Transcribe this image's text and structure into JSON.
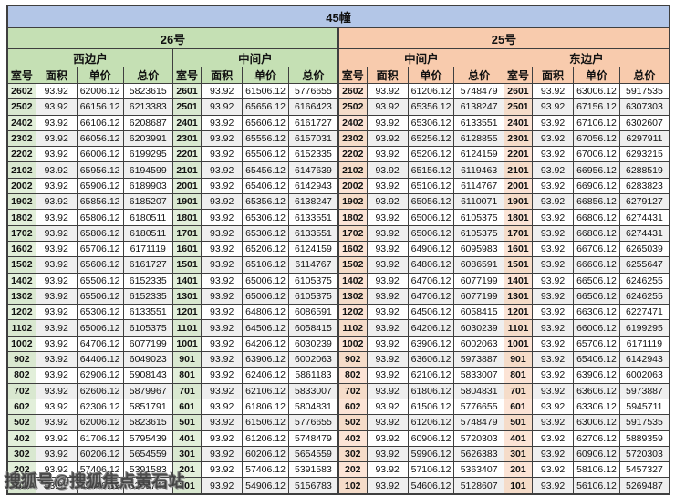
{
  "banner": {
    "title": "45幢"
  },
  "watermark": {
    "text": "搜狐号@搜狐焦点黄石站"
  },
  "colors": {
    "banner_bg": "#b3c6e7",
    "green_header": "#c5e0b4",
    "green_room": "#e2efda",
    "orange_header": "#f8cbad",
    "orange_room": "#fce4d6",
    "stripe": "#efefef",
    "border": "#3f3f3f"
  },
  "table": {
    "column_headers": [
      "室号",
      "面积",
      "单价",
      "总价"
    ],
    "groups": [
      {
        "label": "26号",
        "units": [
          "西边户",
          "中间户"
        ]
      },
      {
        "label": "25号",
        "units": [
          "中间户",
          "东边户"
        ]
      }
    ],
    "sections": [
      {
        "group": "26号",
        "unit": "西边户",
        "rows": [
          [
            "2602",
            "93.92",
            "62006.12",
            "5823615"
          ],
          [
            "2502",
            "93.92",
            "66156.12",
            "6213383"
          ],
          [
            "2402",
            "93.92",
            "66106.12",
            "6208687"
          ],
          [
            "2302",
            "93.92",
            "66056.12",
            "6203991"
          ],
          [
            "2202",
            "93.92",
            "66006.12",
            "6199295"
          ],
          [
            "2102",
            "93.92",
            "65956.12",
            "6194599"
          ],
          [
            "2002",
            "93.92",
            "65906.12",
            "6189903"
          ],
          [
            "1902",
            "93.92",
            "65856.12",
            "6185207"
          ],
          [
            "1802",
            "93.92",
            "65806.12",
            "6180511"
          ],
          [
            "1702",
            "93.92",
            "65806.12",
            "6180511"
          ],
          [
            "1602",
            "93.92",
            "65706.12",
            "6171119"
          ],
          [
            "1502",
            "93.92",
            "65606.12",
            "6161727"
          ],
          [
            "1402",
            "93.92",
            "65506.12",
            "6152335"
          ],
          [
            "1302",
            "93.92",
            "65506.12",
            "6152335"
          ],
          [
            "1202",
            "93.92",
            "65306.12",
            "6133551"
          ],
          [
            "1102",
            "93.92",
            "65006.12",
            "6105375"
          ],
          [
            "1002",
            "93.92",
            "64706.12",
            "6077199"
          ],
          [
            "902",
            "93.92",
            "64406.12",
            "6049023"
          ],
          [
            "802",
            "93.92",
            "62906.12",
            "5908143"
          ],
          [
            "702",
            "93.92",
            "62606.12",
            "5879967"
          ],
          [
            "602",
            "93.92",
            "62306.12",
            "5851791"
          ],
          [
            "502",
            "93.92",
            "62006.12",
            "5823615"
          ],
          [
            "402",
            "93.92",
            "61706.12",
            "5795439"
          ],
          [
            "302",
            "93.92",
            "60206.12",
            "5654559"
          ],
          [
            "202",
            "93.92",
            "57406.12",
            "5391583"
          ],
          [
            "102",
            "93.92",
            "55406.12",
            "5203743"
          ]
        ]
      },
      {
        "group": "26号",
        "unit": "中间户",
        "rows": [
          [
            "2601",
            "93.92",
            "61506.12",
            "5776655"
          ],
          [
            "2501",
            "93.92",
            "65656.12",
            "6166423"
          ],
          [
            "2401",
            "93.92",
            "65606.12",
            "6161727"
          ],
          [
            "2301",
            "93.92",
            "65556.12",
            "6157031"
          ],
          [
            "2201",
            "93.92",
            "65506.12",
            "6152335"
          ],
          [
            "2101",
            "93.92",
            "65456.12",
            "6147639"
          ],
          [
            "2001",
            "93.92",
            "65406.12",
            "6142943"
          ],
          [
            "1901",
            "93.92",
            "65356.12",
            "6138247"
          ],
          [
            "1801",
            "93.92",
            "65306.12",
            "6133551"
          ],
          [
            "1701",
            "93.92",
            "65306.12",
            "6133551"
          ],
          [
            "1601",
            "93.92",
            "65206.12",
            "6124159"
          ],
          [
            "1501",
            "93.92",
            "65106.12",
            "6114767"
          ],
          [
            "1401",
            "93.92",
            "65006.12",
            "6105375"
          ],
          [
            "1301",
            "93.92",
            "65006.12",
            "6105375"
          ],
          [
            "1201",
            "93.92",
            "64806.12",
            "6086591"
          ],
          [
            "1101",
            "93.92",
            "64506.12",
            "6058415"
          ],
          [
            "1001",
            "93.92",
            "64206.12",
            "6030239"
          ],
          [
            "901",
            "93.92",
            "63906.12",
            "6002063"
          ],
          [
            "801",
            "93.92",
            "62406.12",
            "5861183"
          ],
          [
            "701",
            "93.92",
            "62106.12",
            "5833007"
          ],
          [
            "601",
            "93.92",
            "61806.12",
            "5804831"
          ],
          [
            "501",
            "93.92",
            "61506.12",
            "5776655"
          ],
          [
            "401",
            "93.92",
            "61206.12",
            "5748479"
          ],
          [
            "301",
            "93.92",
            "60206.12",
            "5654559"
          ],
          [
            "201",
            "93.92",
            "57406.12",
            "5391583"
          ],
          [
            "101",
            "93.92",
            "54906.12",
            "5156783"
          ]
        ]
      },
      {
        "group": "25号",
        "unit": "中间户",
        "rows": [
          [
            "2602",
            "93.92",
            "61206.12",
            "5748479"
          ],
          [
            "2502",
            "93.92",
            "65356.12",
            "6138247"
          ],
          [
            "2402",
            "93.92",
            "65306.12",
            "6133551"
          ],
          [
            "2302",
            "93.92",
            "65256.12",
            "6128855"
          ],
          [
            "2202",
            "93.92",
            "65206.12",
            "6124159"
          ],
          [
            "2102",
            "93.92",
            "65156.12",
            "6119463"
          ],
          [
            "2002",
            "93.92",
            "65106.12",
            "6114767"
          ],
          [
            "1902",
            "93.92",
            "65056.12",
            "6110071"
          ],
          [
            "1802",
            "93.92",
            "65006.12",
            "6105375"
          ],
          [
            "1702",
            "93.92",
            "65006.12",
            "6105375"
          ],
          [
            "1602",
            "93.92",
            "64906.12",
            "6095983"
          ],
          [
            "1502",
            "93.92",
            "64806.12",
            "6086591"
          ],
          [
            "1402",
            "93.92",
            "64706.12",
            "6077199"
          ],
          [
            "1302",
            "93.92",
            "64706.12",
            "6077199"
          ],
          [
            "1202",
            "93.92",
            "64506.12",
            "6058415"
          ],
          [
            "1102",
            "93.92",
            "64206.12",
            "6030239"
          ],
          [
            "1002",
            "93.92",
            "63906.12",
            "6002063"
          ],
          [
            "902",
            "93.92",
            "63606.12",
            "5973887"
          ],
          [
            "802",
            "93.92",
            "62106.12",
            "5833007"
          ],
          [
            "702",
            "93.92",
            "61806.12",
            "5804831"
          ],
          [
            "602",
            "93.92",
            "61506.12",
            "5776655"
          ],
          [
            "502",
            "93.92",
            "61206.12",
            "5748479"
          ],
          [
            "402",
            "93.92",
            "60906.12",
            "5720303"
          ],
          [
            "302",
            "93.92",
            "59906.12",
            "5626383"
          ],
          [
            "202",
            "93.92",
            "57106.12",
            "5363407"
          ],
          [
            "102",
            "93.92",
            "54606.12",
            "5128607"
          ]
        ]
      },
      {
        "group": "25号",
        "unit": "东边户",
        "rows": [
          [
            "2601",
            "93.92",
            "63006.12",
            "5917535"
          ],
          [
            "2501",
            "93.92",
            "67156.12",
            "6307303"
          ],
          [
            "2401",
            "93.92",
            "67106.12",
            "6302607"
          ],
          [
            "2301",
            "93.92",
            "67056.12",
            "6297911"
          ],
          [
            "2201",
            "93.92",
            "67006.12",
            "6293215"
          ],
          [
            "2101",
            "93.92",
            "66956.12",
            "6288519"
          ],
          [
            "2001",
            "93.92",
            "66906.12",
            "6283823"
          ],
          [
            "1901",
            "93.92",
            "66856.12",
            "6279127"
          ],
          [
            "1801",
            "93.92",
            "66806.12",
            "6274431"
          ],
          [
            "1701",
            "93.92",
            "66806.12",
            "6274431"
          ],
          [
            "1601",
            "93.92",
            "66706.12",
            "6265039"
          ],
          [
            "1501",
            "93.92",
            "66606.12",
            "6255647"
          ],
          [
            "1401",
            "93.92",
            "66506.12",
            "6246255"
          ],
          [
            "1301",
            "93.92",
            "66506.12",
            "6246255"
          ],
          [
            "1201",
            "93.92",
            "66306.12",
            "6227471"
          ],
          [
            "1101",
            "93.92",
            "66006.12",
            "6199295"
          ],
          [
            "1001",
            "93.92",
            "65706.12",
            "6171119"
          ],
          [
            "901",
            "93.92",
            "65406.12",
            "6142943"
          ],
          [
            "801",
            "93.92",
            "63906.12",
            "6002063"
          ],
          [
            "701",
            "93.92",
            "63606.12",
            "5973887"
          ],
          [
            "601",
            "93.92",
            "63306.12",
            "5945711"
          ],
          [
            "501",
            "93.92",
            "63006.12",
            "5917535"
          ],
          [
            "401",
            "93.92",
            "62706.12",
            "5889359"
          ],
          [
            "301",
            "93.92",
            "60906.12",
            "5720303"
          ],
          [
            "201",
            "93.92",
            "58106.12",
            "5457327"
          ],
          [
            "101",
            "93.92",
            "56106.12",
            "5269487"
          ]
        ]
      }
    ]
  }
}
